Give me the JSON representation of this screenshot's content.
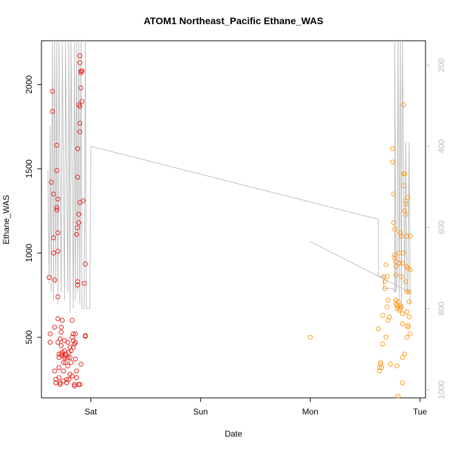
{
  "chart_data": {
    "type": "scatter",
    "title": "ATOM1 Northeast_Pacific Ethane_WAS",
    "xlabel": "Date",
    "ylabel": "Ethane_WAS",
    "xlim_days": [
      -0.45,
      3.05
    ],
    "ylim": [
      140,
      2260
    ],
    "x_ticks": [
      {
        "label": "Sat",
        "day": 0
      },
      {
        "label": "Sun",
        "day": 1
      },
      {
        "label": "Mon",
        "day": 2
      },
      {
        "label": "Tue",
        "day": 3
      }
    ],
    "y_ticks": [
      500,
      1000,
      1500,
      2000
    ],
    "y2_ticks": [
      200,
      400,
      600,
      800,
      1000
    ],
    "y2lim": [
      140,
      1020
    ],
    "y2_reversed": true,
    "grid": false,
    "colors": {
      "series1": "#e8221a",
      "series2": "#ff9a1e",
      "line": "#bdbdbd",
      "right_axis": "#bbbbbb"
    },
    "series": [
      {
        "values": [
          [
            -0.38,
            855
          ],
          [
            -0.37,
            520
          ],
          [
            -0.37,
            470
          ],
          [
            -0.36,
            1420
          ],
          [
            -0.35,
            1960
          ],
          [
            -0.35,
            1840
          ],
          [
            -0.34,
            1350
          ],
          [
            -0.34,
            1090
          ],
          [
            -0.34,
            1000
          ],
          [
            -0.33,
            840
          ],
          [
            -0.33,
            560
          ],
          [
            -0.33,
            300
          ],
          [
            -0.32,
            250
          ],
          [
            -0.32,
            230
          ],
          [
            -0.31,
            1640
          ],
          [
            -0.31,
            1490
          ],
          [
            -0.31,
            1270
          ],
          [
            -0.31,
            1255
          ],
          [
            -0.3,
            1320
          ],
          [
            -0.3,
            1120
          ],
          [
            -0.3,
            1010
          ],
          [
            -0.3,
            740
          ],
          [
            -0.3,
            610
          ],
          [
            -0.3,
            470
          ],
          [
            -0.29,
            400
          ],
          [
            -0.29,
            380
          ],
          [
            -0.29,
            320
          ],
          [
            -0.29,
            260
          ],
          [
            -0.28,
            220
          ],
          [
            -0.28,
            230
          ],
          [
            -0.28,
            490
          ],
          [
            -0.27,
            560
          ],
          [
            -0.27,
            530
          ],
          [
            -0.27,
            450
          ],
          [
            -0.27,
            400
          ],
          [
            -0.26,
            600
          ],
          [
            -0.26,
            410
          ],
          [
            -0.26,
            390
          ],
          [
            -0.25,
            350
          ],
          [
            -0.25,
            300
          ],
          [
            -0.25,
            240
          ],
          [
            -0.24,
            480
          ],
          [
            -0.24,
            420
          ],
          [
            -0.24,
            380
          ],
          [
            -0.23,
            400
          ],
          [
            -0.23,
            390
          ],
          [
            -0.23,
            350
          ],
          [
            -0.22,
            250
          ],
          [
            -0.22,
            230
          ],
          [
            -0.21,
            330
          ],
          [
            -0.21,
            380
          ],
          [
            -0.21,
            470
          ],
          [
            -0.2,
            410
          ],
          [
            -0.2,
            250
          ],
          [
            -0.19,
            440
          ],
          [
            -0.19,
            280
          ],
          [
            -0.19,
            380
          ],
          [
            -0.18,
            420
          ],
          [
            -0.18,
            350
          ],
          [
            -0.17,
            270
          ],
          [
            -0.17,
            500
          ],
          [
            -0.17,
            600
          ],
          [
            -0.16,
            480
          ],
          [
            -0.16,
            520
          ],
          [
            -0.16,
            440
          ],
          [
            -0.15,
            220
          ],
          [
            -0.15,
            210
          ],
          [
            -0.15,
            460
          ],
          [
            -0.14,
            520
          ],
          [
            -0.14,
            470
          ],
          [
            -0.14,
            370
          ],
          [
            -0.13,
            300
          ],
          [
            -0.13,
            260
          ],
          [
            -0.13,
            1110
          ],
          [
            -0.12,
            1150
          ],
          [
            -0.12,
            1450
          ],
          [
            -0.12,
            1620
          ],
          [
            -0.12,
            830
          ],
          [
            -0.12,
            810
          ],
          [
            -0.11,
            1880
          ],
          [
            -0.11,
            1230
          ],
          [
            -0.11,
            1180
          ],
          [
            -0.11,
            220
          ],
          [
            -0.1,
            1770
          ],
          [
            -0.1,
            1720
          ],
          [
            -0.1,
            2170
          ],
          [
            -0.1,
            2130
          ],
          [
            -0.1,
            1870
          ],
          [
            -0.1,
            1300
          ],
          [
            -0.1,
            220
          ],
          [
            -0.09,
            2080
          ],
          [
            -0.09,
            2070
          ],
          [
            -0.09,
            1980
          ],
          [
            -0.09,
            340
          ],
          [
            -0.08,
            2080
          ],
          [
            -0.08,
            1900
          ],
          [
            -0.07,
            1310
          ],
          [
            -0.06,
            820
          ],
          [
            -0.05,
            510
          ],
          [
            -0.05,
            505
          ],
          [
            -0.05,
            935
          ]
        ]
      },
      {
        "values": [
          [
            2.0,
            500
          ],
          [
            2.62,
            550
          ],
          [
            2.63,
            320
          ],
          [
            2.63,
            300
          ],
          [
            2.64,
            350
          ],
          [
            2.64,
            340
          ],
          [
            2.65,
            320
          ],
          [
            2.66,
            460
          ],
          [
            2.66,
            630
          ],
          [
            2.67,
            860
          ],
          [
            2.68,
            830
          ],
          [
            2.68,
            790
          ],
          [
            2.69,
            930
          ],
          [
            2.69,
            500
          ],
          [
            2.7,
            860
          ],
          [
            2.7,
            680
          ],
          [
            2.71,
            600
          ],
          [
            2.71,
            720
          ],
          [
            2.72,
            620
          ],
          [
            2.73,
            340
          ],
          [
            2.75,
            1620
          ],
          [
            2.75,
            1540
          ],
          [
            2.76,
            1180
          ],
          [
            2.76,
            1350
          ],
          [
            2.77,
            1140
          ],
          [
            2.77,
            990
          ],
          [
            2.77,
            970
          ],
          [
            2.78,
            950
          ],
          [
            2.78,
            920
          ],
          [
            2.78,
            870
          ],
          [
            2.78,
            720
          ],
          [
            2.78,
            700
          ],
          [
            2.79,
            330
          ],
          [
            2.79,
            690
          ],
          [
            2.79,
            670
          ],
          [
            2.8,
            710
          ],
          [
            2.8,
            680
          ],
          [
            2.8,
            150
          ],
          [
            2.81,
            1000
          ],
          [
            2.81,
            940
          ],
          [
            2.81,
            660
          ],
          [
            2.82,
            1120
          ],
          [
            2.82,
            690
          ],
          [
            2.82,
            670
          ],
          [
            2.83,
            680
          ],
          [
            2.83,
            860
          ],
          [
            2.83,
            1100
          ],
          [
            2.84,
            230
          ],
          [
            2.84,
            380
          ],
          [
            2.84,
            580
          ],
          [
            2.84,
            640
          ],
          [
            2.84,
            940
          ],
          [
            2.85,
            1470
          ],
          [
            2.85,
            1400
          ],
          [
            2.85,
            1000
          ],
          [
            2.85,
            1880
          ],
          [
            2.86,
            1470
          ],
          [
            2.86,
            1250
          ],
          [
            2.86,
            400
          ],
          [
            2.87,
            1290
          ],
          [
            2.87,
            1310
          ],
          [
            2.87,
            1230
          ],
          [
            2.87,
            830
          ],
          [
            2.88,
            1100
          ],
          [
            2.88,
            920
          ],
          [
            2.88,
            770
          ],
          [
            2.88,
            650
          ],
          [
            2.88,
            500
          ],
          [
            2.89,
            560
          ],
          [
            2.89,
            1330
          ],
          [
            2.89,
            910
          ],
          [
            2.89,
            570
          ],
          [
            2.9,
            770
          ],
          [
            2.9,
            710
          ],
          [
            2.9,
            620
          ],
          [
            2.91,
            1100
          ],
          [
            2.91,
            900
          ],
          [
            2.91,
            520
          ]
        ]
      }
    ],
    "right_axis_line": [
      [
        -0.39,
        460
      ],
      [
        -0.38,
        740
      ],
      [
        -0.37,
        350
      ],
      [
        -0.36,
        760
      ],
      [
        -0.35,
        140
      ],
      [
        -0.34,
        780
      ],
      [
        -0.33,
        140
      ],
      [
        -0.32,
        740
      ],
      [
        -0.31,
        140
      ],
      [
        -0.3,
        790
      ],
      [
        -0.29,
        140
      ],
      [
        -0.27,
        760
      ],
      [
        -0.26,
        140
      ],
      [
        -0.24,
        780
      ],
      [
        -0.23,
        140
      ],
      [
        -0.21,
        760
      ],
      [
        -0.2,
        140
      ],
      [
        -0.19,
        810
      ],
      [
        -0.18,
        140
      ],
      [
        -0.16,
        800
      ],
      [
        -0.15,
        140
      ],
      [
        -0.14,
        780
      ],
      [
        -0.13,
        140
      ],
      [
        -0.12,
        760
      ],
      [
        -0.11,
        140
      ],
      [
        -0.1,
        790
      ],
      [
        -0.09,
        140
      ],
      [
        -0.08,
        800
      ],
      [
        -0.06,
        800
      ],
      [
        -0.05,
        140
      ],
      [
        -0.04,
        800
      ],
      [
        -0.01,
        800
      ],
      [
        0.0,
        400
      ],
      [
        2.62,
        580
      ],
      [
        2.62,
        720
      ],
      [
        2.67,
        720
      ],
      [
        2.67,
        750
      ],
      [
        2.75,
        750
      ],
      [
        2.77,
        760
      ],
      [
        2.77,
        140
      ],
      [
        2.78,
        760
      ],
      [
        2.79,
        740
      ],
      [
        2.8,
        140
      ],
      [
        2.81,
        780
      ],
      [
        2.82,
        140
      ],
      [
        2.83,
        800
      ],
      [
        2.84,
        140
      ],
      [
        2.86,
        760
      ],
      [
        2.87,
        390
      ],
      [
        2.88,
        760
      ],
      [
        2.89,
        760
      ],
      [
        2.9,
        390
      ],
      [
        2.91,
        790
      ]
    ],
    "right_axis_line2": [
      [
        2.0,
        635
      ],
      [
        2.91,
        760
      ]
    ]
  }
}
